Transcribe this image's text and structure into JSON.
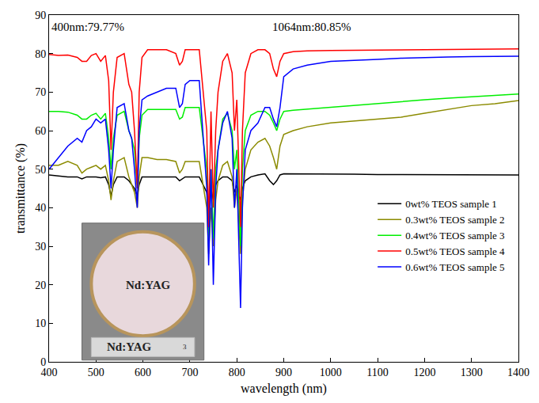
{
  "chart_data": {
    "type": "line",
    "x_label": "wavelength (nm)",
    "y_label": "transmittance (%)",
    "x": [
      400,
      420,
      440,
      460,
      470,
      480,
      490,
      500,
      510,
      520,
      527,
      532,
      537,
      545,
      560,
      570,
      576,
      582,
      588,
      592,
      598,
      610,
      630,
      650,
      670,
      678,
      684,
      690,
      700,
      720,
      736,
      740,
      745,
      750,
      755,
      760,
      770,
      780,
      790,
      795,
      800,
      805,
      808,
      812,
      818,
      830,
      845,
      860,
      870,
      878,
      885,
      892,
      900,
      920,
      950,
      1000,
      1050,
      1100,
      1150,
      1200,
      1250,
      1300,
      1350,
      1400
    ],
    "series": [
      {
        "name": "0wt% TEOS sample 1",
        "color": "#000000",
        "values": [
          48.5,
          48.3,
          48,
          48,
          47.5,
          48,
          48,
          48,
          47.8,
          48,
          46,
          43,
          46,
          48,
          48,
          47,
          46,
          45,
          43,
          46,
          48,
          48,
          48,
          48,
          48,
          47,
          47.5,
          48,
          48,
          48,
          44,
          40,
          45,
          42,
          46,
          47,
          48,
          48,
          47,
          44,
          46,
          43,
          42,
          45,
          47,
          48,
          48.5,
          48.8,
          47,
          46,
          47,
          48.5,
          48.8,
          48.8,
          48.8,
          48.7,
          48.7,
          48.6,
          48.6,
          48.6,
          48.6,
          48.5,
          48.5,
          48.5
        ]
      },
      {
        "name": "0.3wt% TEOS sample 2",
        "color": "#8b8b00",
        "values": [
          51,
          51,
          52,
          51,
          49,
          50,
          50.5,
          51,
          50,
          51,
          47,
          42,
          47,
          52,
          53,
          48,
          46,
          44,
          40,
          48,
          53,
          53,
          52.5,
          52.5,
          52,
          49,
          50,
          52,
          52,
          52,
          40,
          28,
          40,
          30,
          42,
          47,
          51,
          52,
          48,
          40,
          45,
          35,
          28,
          42,
          50,
          55,
          57,
          58,
          56,
          53,
          50,
          56,
          59,
          60,
          61,
          62,
          62.5,
          63,
          63.5,
          64.5,
          65.5,
          66.5,
          67,
          67.8
        ]
      },
      {
        "name": "0.4wt% TEOS sample 3",
        "color": "#00ee00",
        "values": [
          65,
          65,
          64.8,
          64,
          63,
          63,
          64,
          64.5,
          63,
          64.5,
          58,
          50,
          58,
          64,
          65,
          60,
          58,
          55,
          45,
          58,
          64,
          65.5,
          65.5,
          65.5,
          65.5,
          63,
          63.5,
          66,
          66,
          66,
          50,
          30,
          50,
          32,
          50,
          55,
          63,
          64.5,
          60,
          50,
          55,
          40,
          30,
          50,
          60,
          64,
          65,
          65,
          64,
          62,
          60,
          63,
          65,
          65.3,
          65.6,
          66,
          66.5,
          67,
          67.5,
          68,
          68.4,
          68.8,
          69.2,
          69.5
        ]
      },
      {
        "name": "0.5wt% TEOS sample 4",
        "color": "#ff0000",
        "values": [
          79.8,
          79.5,
          79.6,
          79,
          78,
          78,
          79.5,
          80,
          78,
          79.5,
          73,
          55,
          70,
          79,
          80,
          72,
          70,
          60,
          45,
          70,
          79,
          81,
          81,
          81,
          80,
          77,
          78,
          81,
          81,
          81,
          60,
          35,
          65,
          40,
          60,
          70,
          78,
          80,
          75,
          60,
          68,
          50,
          35,
          60,
          75,
          80,
          81,
          81,
          80,
          76,
          74,
          78,
          80,
          80.5,
          80.7,
          80.8,
          80.85,
          80.9,
          81,
          81,
          81,
          81.1,
          81.1,
          81.2
        ]
      },
      {
        "name": "0.6wt% TEOS sample 5",
        "color": "#0000ff",
        "values": [
          50,
          53,
          56,
          58,
          57,
          60,
          61,
          63,
          62,
          63,
          55,
          45,
          55,
          66,
          67,
          60,
          58,
          50,
          40,
          60,
          68,
          69,
          70,
          71,
          71,
          66,
          67,
          72,
          73,
          73,
          45,
          25,
          50,
          20,
          45,
          55,
          62,
          65,
          58,
          40,
          50,
          30,
          14,
          40,
          55,
          60,
          62,
          66,
          66,
          63,
          61,
          66,
          74,
          76,
          77,
          78,
          78.2,
          78.5,
          78.8,
          79,
          79.1,
          79.2,
          79.3,
          79.3
        ]
      }
    ],
    "xlim": [
      400,
      1400
    ],
    "xticks": [
      400,
      500,
      600,
      700,
      800,
      900,
      1000,
      1100,
      1200,
      1300,
      1400
    ],
    "ylim": [
      0,
      90
    ],
    "yticks": [
      0,
      10,
      20,
      30,
      40,
      50,
      60,
      70,
      80,
      90
    ],
    "grid": false,
    "legend": "bottom right",
    "annotations": [
      {
        "text": "400nm:79.77%",
        "x": 402,
        "y": 87
      },
      {
        "text": "1064nm:80.85%",
        "x": 960,
        "y": 87
      },
      {
        "text": "Nd:YAG",
        "x": 610,
        "y": 20
      },
      {
        "text": "Nd:YAG",
        "x": 570,
        "y": 4
      },
      {
        "text": "3",
        "x": 690,
        "y": 4
      }
    ]
  }
}
